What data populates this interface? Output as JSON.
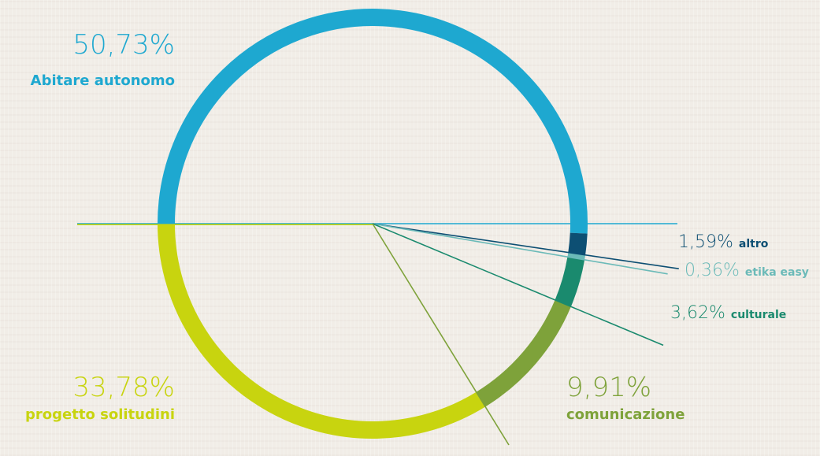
{
  "chart_data": {
    "type": "pie",
    "style": "ring",
    "slices": [
      {
        "label": "Abitare autonomo",
        "value": 50.73,
        "display": "50,73%",
        "color": "#1ea8d0"
      },
      {
        "label": "altro",
        "value": 1.59,
        "display": "1,59%",
        "color": "#0d4f73"
      },
      {
        "label": "etika easy",
        "value": 0.36,
        "display": "0,36%",
        "color": "#6bbab8"
      },
      {
        "label": "culturale",
        "value": 3.62,
        "display": "3,62%",
        "color": "#1a8a6e"
      },
      {
        "label": "comunicazione",
        "value": 9.91,
        "display": "9,91%",
        "color": "#7ea23a"
      },
      {
        "label": "progetto solitudini",
        "value": 33.78,
        "display": "33,78%",
        "color": "#c8d40f"
      }
    ]
  }
}
